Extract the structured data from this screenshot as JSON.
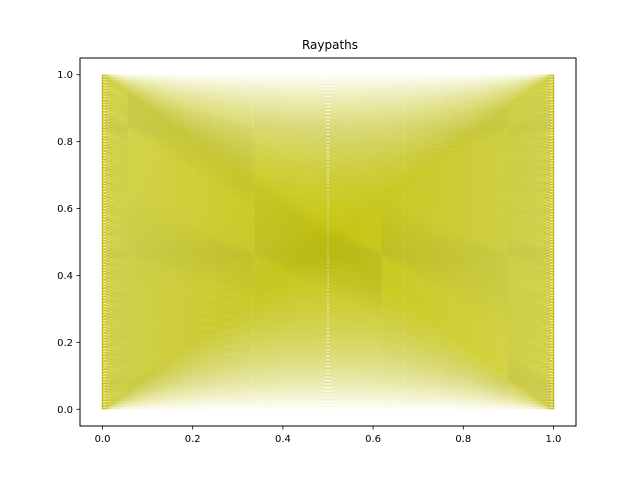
{
  "chart_data": {
    "type": "line",
    "title": "Raypaths",
    "xlabel": "",
    "ylabel": "",
    "xlim": [
      -0.05,
      1.05
    ],
    "ylim": [
      -0.05,
      1.05
    ],
    "xticks": [
      0.0,
      0.2,
      0.4,
      0.6,
      0.8,
      1.0
    ],
    "yticks": [
      0.0,
      0.2,
      0.4,
      0.6,
      0.8,
      1.0
    ],
    "xtick_labels": [
      "0.0",
      "0.2",
      "0.4",
      "0.6",
      "0.8",
      "1.0"
    ],
    "ytick_labels": [
      "0.0",
      "0.2",
      "0.4",
      "0.6",
      "0.8",
      "1.0"
    ],
    "grid": false,
    "legend": "none",
    "ray_color": "#bfbf00",
    "sources": {
      "x": 0.0,
      "y_range": [
        0.0,
        1.0
      ],
      "count": 120
    },
    "receivers": {
      "x": 1.0,
      "y_range": [
        0.0,
        1.0
      ],
      "count": 120
    },
    "series": [
      {
        "ray_family": "source-receiver fan",
        "values": "all source-receiver pairs"
      }
    ]
  }
}
